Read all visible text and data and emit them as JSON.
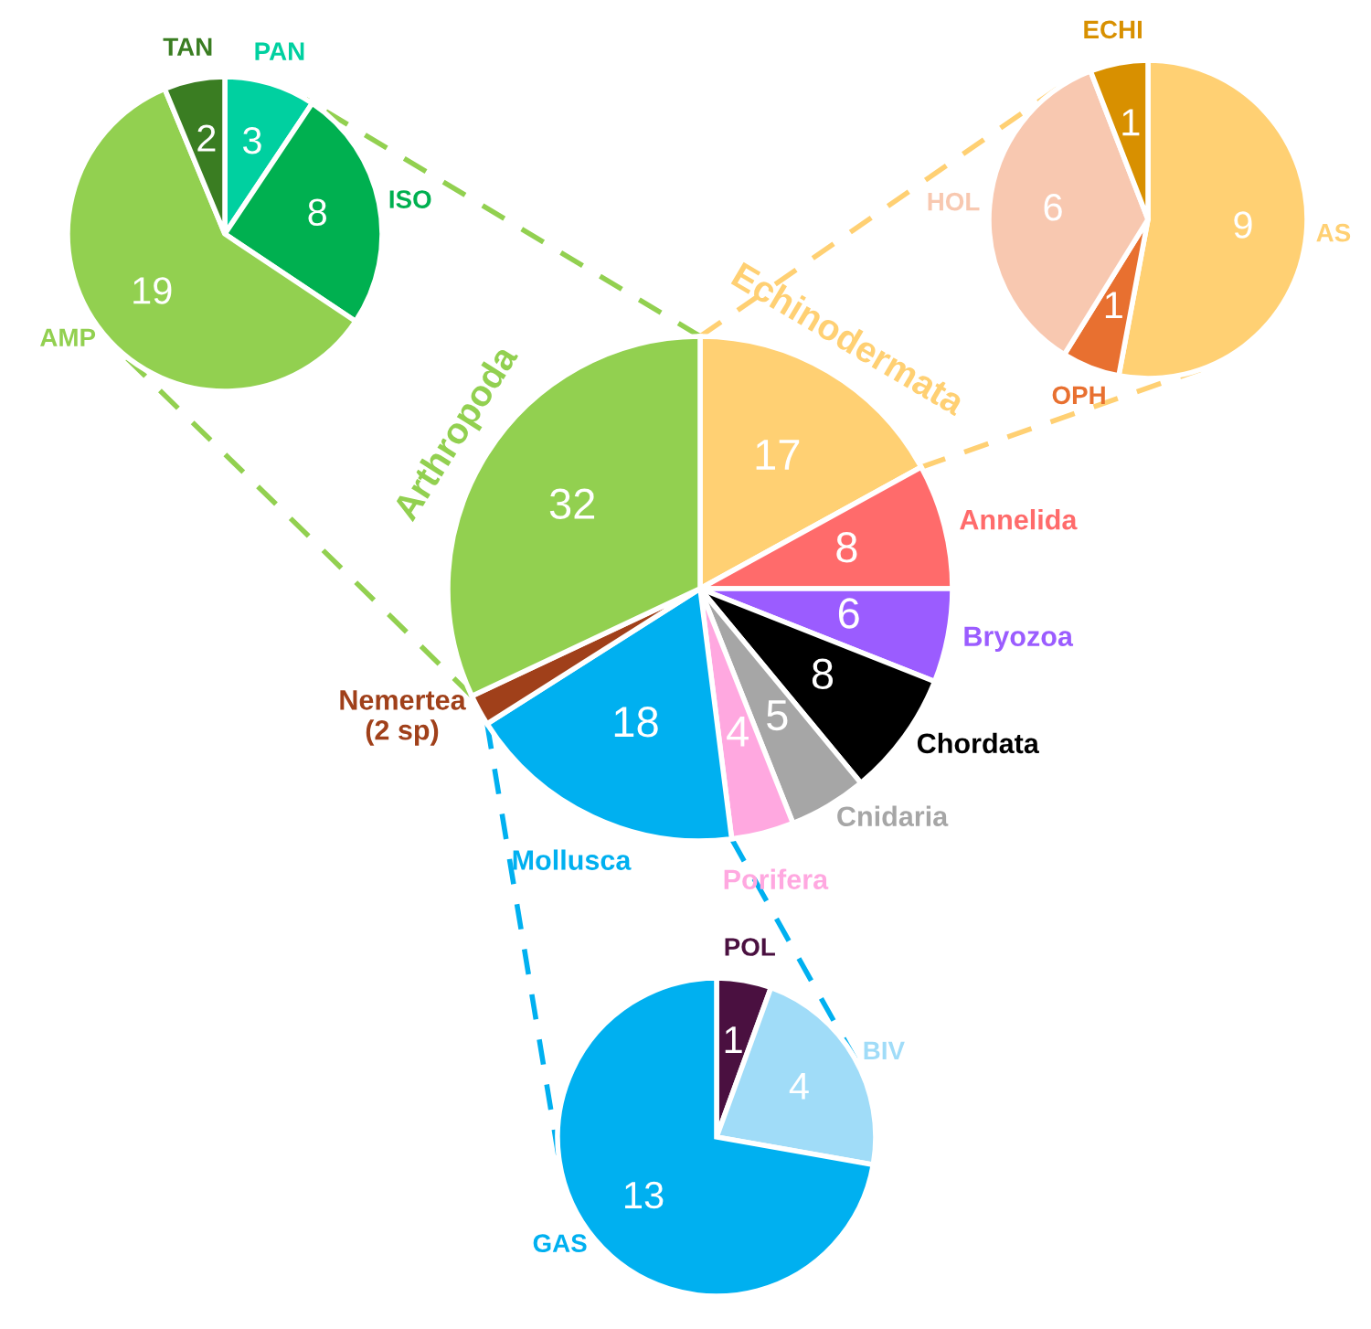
{
  "chart_data": [
    {
      "type": "pie",
      "categories": [
        "Echinodermata",
        "Annelida",
        "Bryozoa",
        "Chordata",
        "Cnidaria",
        "Porifera",
        "Mollusca",
        "Nemertea\n(2 sp)",
        "Arthropoda"
      ],
      "values": [
        17,
        8,
        6,
        8,
        5,
        4,
        18,
        2,
        32
      ],
      "colors": [
        "#ffd073",
        "#ff6b6b",
        "#9b5cff",
        "#000000",
        "#a6a6a6",
        "#ffa8e0",
        "#00b0f0",
        "#a0401a",
        "#92d050"
      ],
      "value_labels": [
        "17",
        "8",
        "6",
        "8",
        "5",
        "4",
        "18",
        null,
        "32"
      ]
    },
    {
      "type": "pie",
      "categories": [
        "PAN",
        "ISO",
        "AMP",
        "TAN"
      ],
      "values": [
        3,
        8,
        19,
        2
      ],
      "colors": [
        "#00d0a0",
        "#00b050",
        "#92d050",
        "#3a7d22"
      ],
      "data_labels": true
    },
    {
      "type": "pie",
      "categories": [
        "AS",
        "OPH",
        "HOL",
        "ECHI"
      ],
      "values": [
        9,
        1,
        6,
        1
      ],
      "colors": [
        "#ffd073",
        "#e87030",
        "#f8c8b0",
        "#d89000"
      ],
      "data_labels": true
    },
    {
      "type": "pie",
      "categories": [
        "POL",
        "BIV",
        "GAS"
      ],
      "values": [
        1,
        4,
        13
      ],
      "colors": [
        "#4a1040",
        "#a0dcf8",
        "#00b0f0"
      ],
      "data_labels": true
    }
  ]
}
